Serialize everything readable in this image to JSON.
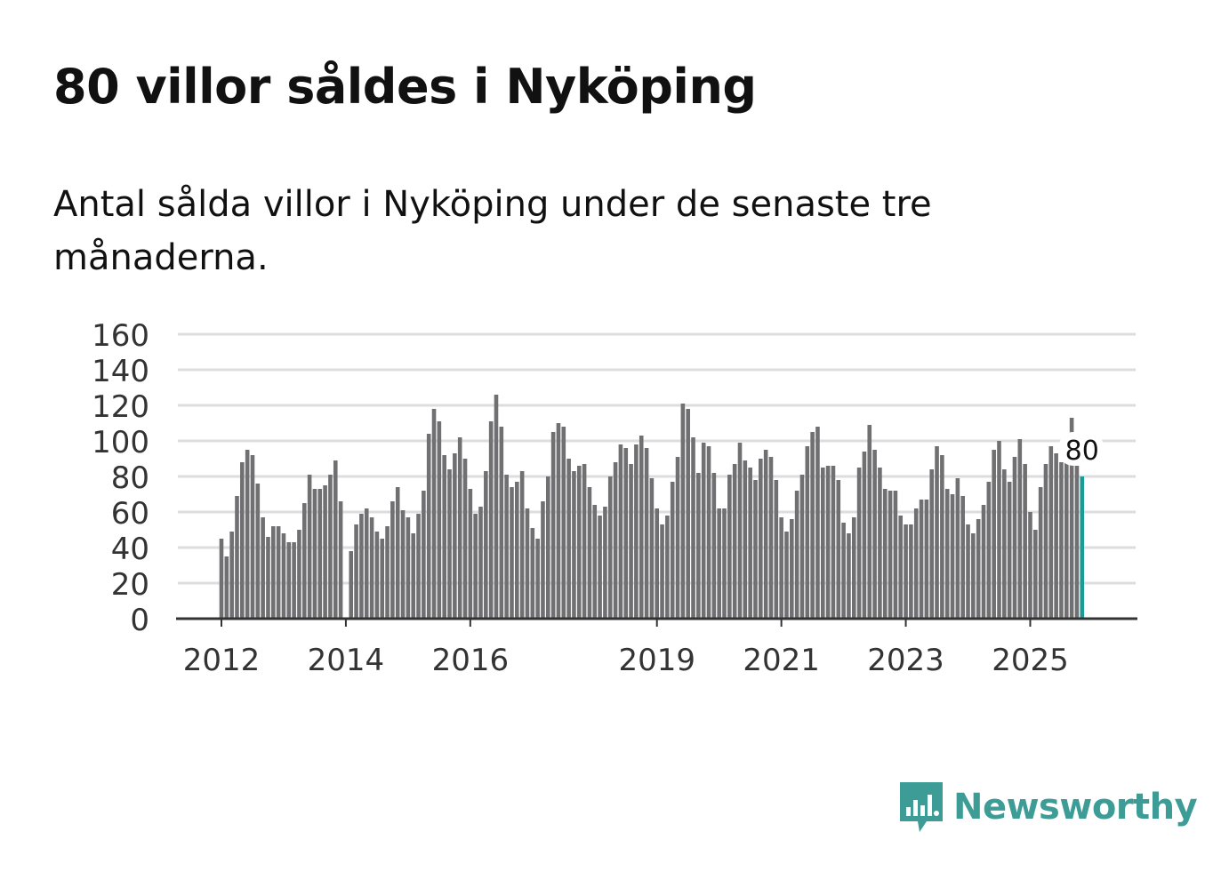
{
  "title": "80 villor såldes i Nyköping",
  "subtitle": "Antal sålda villor i Nyköping under de senaste tre månaderna.",
  "brand": "Newsworthy",
  "colors": {
    "bar": "#707073",
    "highlight": "#1a9b96",
    "grid": "#dddddd",
    "brand": "#3d9d96"
  },
  "chart_data": {
    "type": "bar",
    "title": "",
    "xlabel": "",
    "ylabel": "",
    "ylim": [
      0,
      160
    ],
    "yticks": [
      0,
      20,
      40,
      60,
      80,
      100,
      120,
      140,
      160
    ],
    "grid": true,
    "x_start": "2012-01",
    "xtick_labels": [
      {
        "label": "2012",
        "index": 0
      },
      {
        "label": "2014",
        "index": 24
      },
      {
        "label": "2016",
        "index": 48
      },
      {
        "label": "2019",
        "index": 84
      },
      {
        "label": "2021",
        "index": 108
      },
      {
        "label": "2023",
        "index": 132
      },
      {
        "label": "2025",
        "index": 156
      }
    ],
    "values": [
      45,
      35,
      49,
      69,
      88,
      95,
      92,
      76,
      57,
      46,
      52,
      52,
      48,
      43,
      43,
      50,
      65,
      81,
      73,
      73,
      75,
      81,
      89,
      66,
      null,
      38,
      53,
      59,
      62,
      57,
      49,
      45,
      52,
      66,
      74,
      61,
      57,
      48,
      59,
      72,
      104,
      118,
      111,
      92,
      84,
      93,
      102,
      90,
      73,
      59,
      63,
      83,
      111,
      126,
      108,
      81,
      74,
      77,
      83,
      62,
      51,
      45,
      66,
      80,
      105,
      110,
      108,
      90,
      83,
      86,
      87,
      74,
      64,
      58,
      63,
      80,
      88,
      98,
      96,
      87,
      98,
      103,
      96,
      79,
      62,
      53,
      58,
      77,
      91,
      121,
      118,
      102,
      82,
      99,
      97,
      82,
      62,
      62,
      81,
      87,
      99,
      89,
      85,
      78,
      90,
      95,
      91,
      78,
      57,
      49,
      56,
      72,
      81,
      97,
      105,
      108,
      85,
      86,
      86,
      78,
      54,
      48,
      57,
      85,
      94,
      109,
      95,
      85,
      73,
      72,
      72,
      58,
      53,
      53,
      62,
      67,
      67,
      84,
      97,
      92,
      73,
      70,
      79,
      69,
      53,
      48,
      56,
      64,
      77,
      95,
      100,
      84,
      77,
      91,
      101,
      87,
      60,
      50,
      74,
      87,
      97,
      93,
      88,
      91,
      113,
      87,
      80
    ],
    "highlight_label": "80"
  }
}
